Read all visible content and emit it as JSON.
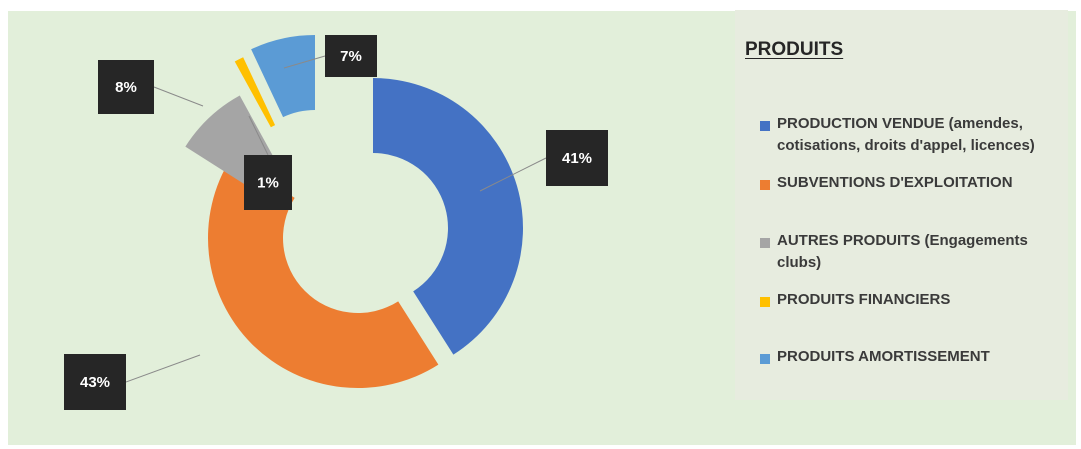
{
  "chart_data": {
    "type": "donut",
    "title": "PRODUITS",
    "series": [
      {
        "values": [
          41,
          43,
          8,
          1,
          7
        ]
      }
    ],
    "categories": [
      "PRODUCTION VENDUE (amendes,\ncotisations, droits d'appel, licences)",
      "SUBVENTIONS D'EXPLOITATION",
      "AUTRES PRODUITS (Engagements\nclubs)",
      "PRODUITS FINANCIERS",
      "PRODUITS AMORTISSEMENT"
    ],
    "data_labels": [
      "41%",
      "43%",
      "8%",
      "1%",
      "7%"
    ],
    "colors": [
      "#4472c4",
      "#ed7d31",
      "#a5a5a5",
      "#ffc000",
      "#5b9bd5"
    ],
    "legend_position": "right",
    "background": "#e2efda",
    "label_background": "#262626"
  }
}
